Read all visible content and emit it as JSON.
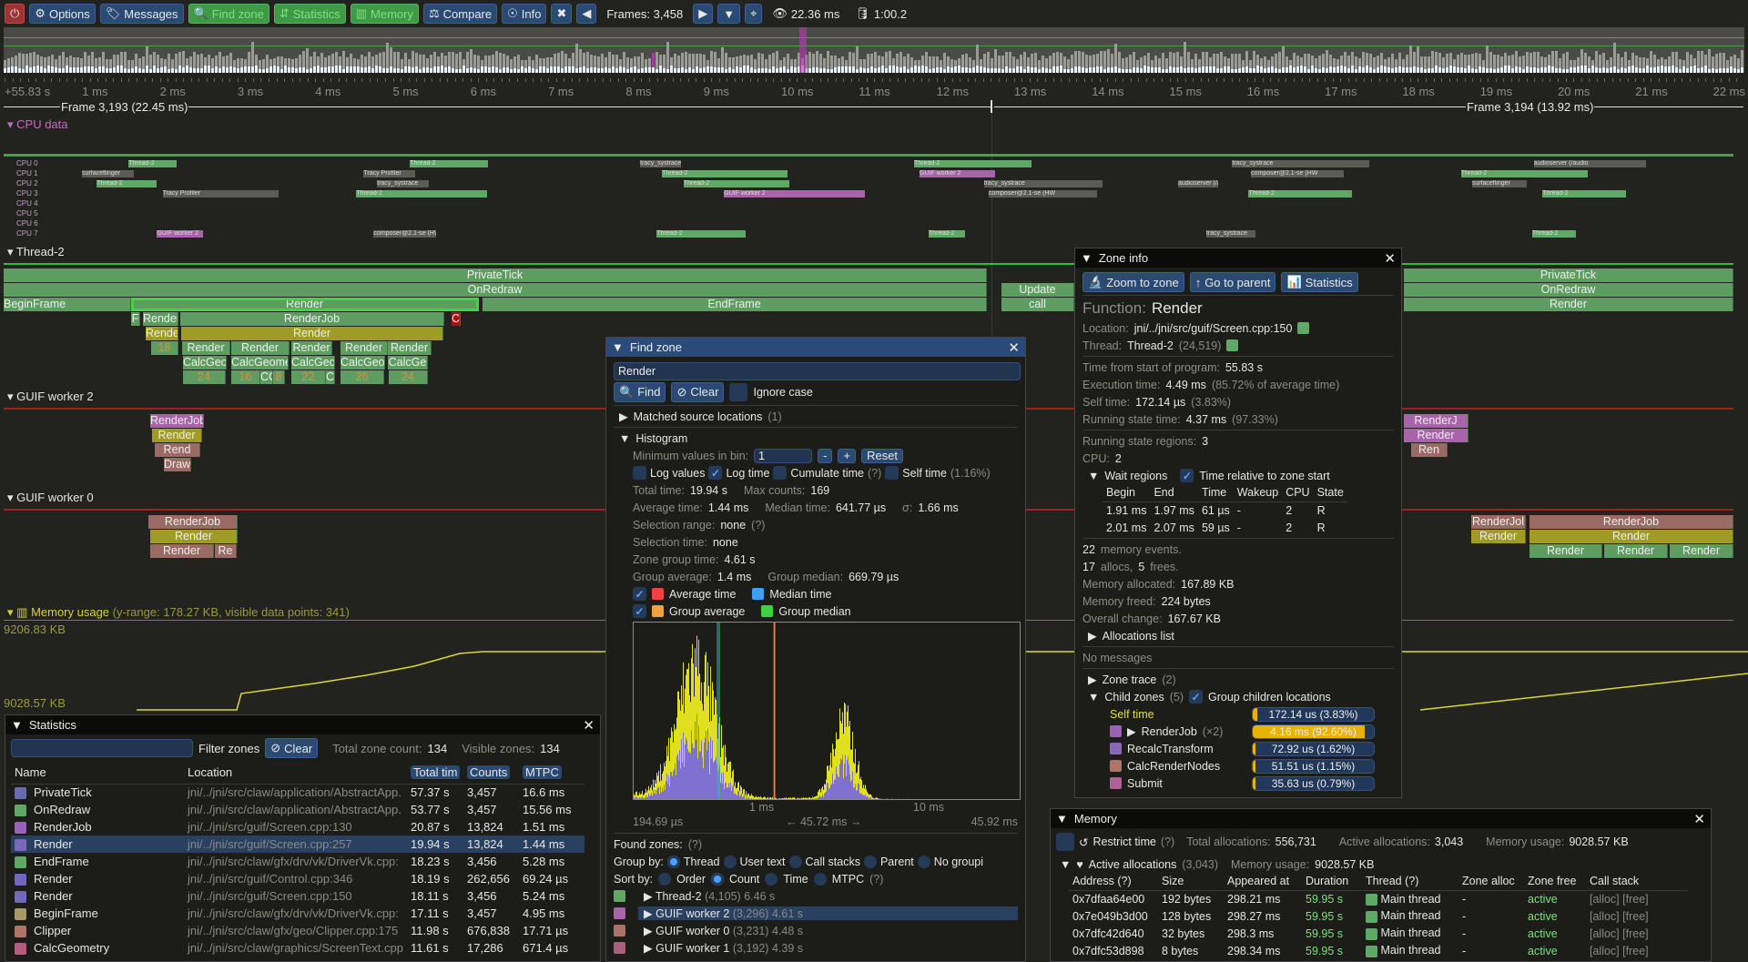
{
  "toolbar": {
    "buttons": [
      {
        "label": "",
        "icon": "power-icon"
      },
      {
        "label": "Options",
        "icon": "gear-icon"
      },
      {
        "label": "Messages",
        "icon": "tags-icon"
      },
      {
        "label": "Find zone",
        "icon": "search-icon"
      },
      {
        "label": "Statistics",
        "icon": "sort-amount-icon"
      },
      {
        "label": "Memory",
        "icon": "memory-icon"
      },
      {
        "label": "Compare",
        "icon": "scale-balanced-icon"
      },
      {
        "label": "Info",
        "icon": "fingerprint-icon"
      }
    ],
    "frames_label": "Frames: 3,458",
    "frame_time": "22.36 ms",
    "trace_length": "1:00.2"
  },
  "ruler": {
    "labels": [
      "+55.83 s",
      "1 ms",
      "2 ms",
      "3 ms",
      "4 ms",
      "5 ms",
      "6 ms",
      "7 ms",
      "8 ms",
      "9 ms",
      "10 ms",
      "11 ms",
      "12 ms",
      "13 ms",
      "14 ms",
      "15 ms",
      "16 ms",
      "17 ms",
      "18 ms",
      "19 ms",
      "20 ms",
      "21 ms",
      "22 ms"
    ]
  },
  "frames": [
    {
      "label": "Frame 3,193 (22.45 ms)"
    },
    {
      "label": "Frame 3,194 (13.92 ms)"
    }
  ],
  "timeline": {
    "cpu_header": "CPU data",
    "cpu_labels": [
      "CPU 0",
      "CPU 1",
      "CPU 2",
      "CPU 3",
      "CPU 4",
      "CPU 5",
      "CPU 6",
      "CPU 7"
    ],
    "cpu_threads": [
      "Thread-2",
      "Thread-2",
      "tracy_systrace",
      "Thread-2",
      "tracy_systrace",
      "audioserver (/audio",
      "surfaceflinger",
      "Tracy Profiler",
      "Thread-2",
      "GUIF worker 2",
      "composer@2.1-se (HW"
    ],
    "threads": [
      {
        "name": "Thread-2",
        "zones": [
          "PrivateTick",
          "OnRedraw",
          "BeginFrame",
          "Render",
          "EndFrame",
          "F",
          "Render",
          "RenderJob",
          "C",
          "Rende",
          "Render",
          "Render",
          "Render",
          "Render",
          "Render",
          "Render",
          "CalcGeo",
          "CalcGeome",
          "CalcGeor",
          "CalcGeo",
          "CalcGe",
          "24",
          "16",
          "CC",
          "8",
          "22",
          "C",
          "26",
          "24",
          "18",
          "Update",
          "call",
          "PrivateTick",
          "OnRedraw",
          "Render"
        ]
      },
      {
        "name": "GUIF worker 2",
        "zones": [
          "RenderJob",
          "Render",
          "Rend",
          "Draw",
          "RenderJ",
          "Render",
          "Ren"
        ]
      },
      {
        "name": "GUIF worker 0",
        "zones": [
          "RenderJob",
          "Render",
          "Render",
          "Re",
          "RenderJol",
          "Render",
          "RenderJob",
          "Render",
          "Render",
          "Render",
          "Render"
        ]
      }
    ],
    "memory": {
      "title": "Memory usage",
      "info": "(y-range: 178.27 KB, visible data points: 341)",
      "max_label": "9206.83 KB",
      "min_label": "9028.57 KB"
    }
  },
  "statistics": {
    "title": "Statistics",
    "filter_placeholder": "",
    "filter_label": "Filter zones",
    "clear": "Clear",
    "total_zone_count_label": "Total zone count:",
    "total_zone_count": "134",
    "visible_zones_label": "Visible zones:",
    "visible_zones": "134",
    "columns": [
      "Name",
      "Location",
      "Total tim",
      "Counts",
      "MTPC"
    ],
    "rows": [
      {
        "name": "PrivateTick",
        "location": "jni/../jni/src/claw/application/AbstractApp.",
        "total": "57.37 s",
        "counts": "3,457",
        "mtpc": "16.6 ms",
        "color": "#6b6bb0"
      },
      {
        "name": "OnRedraw",
        "location": "jni/../jni/src/claw/application/AbstractApp.",
        "total": "53.77 s",
        "counts": "3,457",
        "mtpc": "15.56 ms",
        "color": "#5fa866"
      },
      {
        "name": "RenderJob",
        "location": "jni/../jni/src/guif/Screen.cpp:130",
        "total": "20.87 s",
        "counts": "13,824",
        "mtpc": "1.51 ms",
        "color": "#9a62b4"
      },
      {
        "name": "Render",
        "location": "jni/../jni/src/guif/Screen.cpp:257",
        "total": "19.94 s",
        "counts": "13,824",
        "mtpc": "1.44 ms",
        "color": "#7a68b8",
        "selected": true
      },
      {
        "name": "EndFrame",
        "location": "jni/../jni/src/claw/gfx/drv/vk/DriverVk.cpp:",
        "total": "18.23 s",
        "counts": "3,456",
        "mtpc": "5.28 ms",
        "color": "#5fa866"
      },
      {
        "name": "Render",
        "location": "jni/../jni/src/guif/Control.cpp:346",
        "total": "18.19 s",
        "counts": "262,656",
        "mtpc": "69.24 µs",
        "color": "#7068b8"
      },
      {
        "name": "Render",
        "location": "jni/../jni/src/guif/Screen.cpp:150",
        "total": "18.11 s",
        "counts": "3,456",
        "mtpc": "5.24 ms",
        "color": "#7068b8"
      },
      {
        "name": "BeginFrame",
        "location": "jni/../jni/src/claw/gfx/drv/vk/DriverVk.cpp:",
        "total": "17.11 s",
        "counts": "3,457",
        "mtpc": "4.95 ms",
        "color": "#a89a68"
      },
      {
        "name": "Clipper",
        "location": "jni/../jni/src/claw/gfx/geo/Clipper.cpp:175",
        "total": "11.98 s",
        "counts": "676,838",
        "mtpc": "17.71 µs",
        "color": "#b07468"
      },
      {
        "name": "CalcGeometry",
        "location": "jni/../jni/src/claw/graphics/ScreenText.cpp",
        "total": "11.61 s",
        "counts": "17,286",
        "mtpc": "671.4 µs",
        "color": "#b0607e"
      }
    ]
  },
  "find_zone": {
    "title": "Find zone",
    "query": "Render",
    "find": "Find",
    "clear": "Clear",
    "ignore_case": "Ignore case",
    "matched": "Matched source locations",
    "matched_count": "(1)",
    "histogram": "Histogram",
    "min_values_label": "Minimum values in bin:",
    "min_values": "1",
    "minus": "-",
    "plus": "+",
    "reset": "Reset",
    "log_values": "Log values",
    "log_time": "Log time",
    "cumulate_time": "Cumulate time",
    "help": "(?)",
    "self_time": "Self time",
    "self_time_pct": "(1.16%)",
    "total_time_label": "Total time:",
    "total_time": "19.94 s",
    "max_counts_label": "Max counts:",
    "max_counts": "169",
    "avg_label": "Average time:",
    "avg": "1.44 ms",
    "median_label": "Median time:",
    "median": "641.77 µs",
    "sigma_label": "σ:",
    "sigma": "1.66 ms",
    "sel_range_label": "Selection range:",
    "sel_range": "none",
    "sel_time_label": "Selection time:",
    "sel_time": "none",
    "group_time_label": "Zone group time:",
    "group_time": "4.61 s",
    "group_avg_label": "Group average:",
    "group_avg": "1.4 ms",
    "group_median_label": "Group median:",
    "group_median": "669.79 µs",
    "legend": [
      {
        "label": "Average time",
        "color": "#f04040"
      },
      {
        "label": "Median time",
        "color": "#40a0f0"
      },
      {
        "label": "Group average",
        "color": "#f0a040"
      },
      {
        "label": "Group median",
        "color": "#40d040"
      }
    ],
    "axis_ticks": [
      "1 ms",
      "10 ms"
    ],
    "range_min": "194.69 µs",
    "range_span": "← 45.72 ms →",
    "range_max": "45.92 ms",
    "found_zones": "Found zones:",
    "group_by_label": "Group by:",
    "group_by": [
      "Thread",
      "User text",
      "Call stacks",
      "Parent",
      "No groupi"
    ],
    "sort_by_label": "Sort by:",
    "sort_by": [
      "Order",
      "Count",
      "Time",
      "MTPC"
    ],
    "groups": [
      {
        "name": "Thread-2",
        "count": "(4,105)",
        "time": "6.46 s",
        "color": "#5fa866"
      },
      {
        "name": "GUIF worker 2",
        "count": "(3,296)",
        "time": "4.61 s",
        "color": "#a864a8",
        "selected": true
      },
      {
        "name": "GUIF worker 0",
        "count": "(3,231)",
        "time": "4.48 s",
        "color": "#a87468"
      },
      {
        "name": "GUIF worker 1",
        "count": "(3,192)",
        "time": "4.39 s",
        "color": "#a8607e"
      }
    ]
  },
  "zone_info": {
    "title": "Zone info",
    "zoom": "Zoom to zone",
    "parent": "Go to parent",
    "stats": "Statistics",
    "function_label": "Function:",
    "function": "Render",
    "location_label": "Location:",
    "location": "jni/../jni/src/guif/Screen.cpp:150",
    "thread_label": "Thread:",
    "thread": "Thread-2",
    "thread_id": "(24,519)",
    "start_label": "Time from start of program:",
    "start": "55.83 s",
    "exec_label": "Execution time:",
    "exec": "4.49 ms",
    "exec_pct": "(85.72% of average time)",
    "self_label": "Self time:",
    "self": "172.14 µs",
    "self_pct": "(3.83%)",
    "running_label": "Running state time:",
    "running": "4.37 ms",
    "running_pct": "(97.33%)",
    "regions_label": "Running state regions:",
    "regions": "3",
    "cpu_label": "CPU:",
    "cpu": "2",
    "wait_regions": "Wait regions",
    "relative": "Time relative to zone start",
    "wait_columns": [
      "Begin",
      "End",
      "Time",
      "Wakeup",
      "CPU",
      "State"
    ],
    "wait_rows": [
      [
        "1.91 ms",
        "1.97 ms",
        "61 µs",
        "-",
        "2",
        "R"
      ],
      [
        "2.01 ms",
        "2.07 ms",
        "59 µs",
        "-",
        "2",
        "R"
      ]
    ],
    "mem_events": "22",
    "mem_events_label": "memory events.",
    "allocs": "17",
    "allocs_label": "allocs,",
    "frees": "5",
    "frees_label": "frees.",
    "mem_alloc_label": "Memory allocated:",
    "mem_alloc": "167.89 KB",
    "mem_freed_label": "Memory freed:",
    "mem_freed": "224 bytes",
    "overall_label": "Overall change:",
    "overall": "167.67 KB",
    "alloc_list": "Allocations list",
    "no_messages": "No messages",
    "zone_trace": "Zone trace",
    "zone_trace_count": "(2)",
    "child_zones": "Child zones",
    "child_count": "(5)",
    "group_children": "Group children locations",
    "children": [
      {
        "name": "Self time",
        "value": "172.14 us (3.83%)",
        "pct": 3.83,
        "color": ""
      },
      {
        "name": "RenderJob",
        "extra": "(×2)",
        "value": "4.16 ms (92.60%)",
        "pct": 92.6,
        "color": "#9a62b4"
      },
      {
        "name": "RecalcTransform",
        "value": "72.92 us (1.62%)",
        "pct": 1.62,
        "color": "#8a68b8"
      },
      {
        "name": "CalcRenderNodes",
        "value": "51.51 us (1.15%)",
        "pct": 1.15,
        "color": "#b07468"
      },
      {
        "name": "Submit",
        "value": "35.63 us (0.79%)",
        "pct": 0.79,
        "color": "#b0609a"
      }
    ]
  },
  "memory": {
    "title": "Memory",
    "restrict": "Restrict time",
    "help": "(?)",
    "total_label": "Total allocations:",
    "total": "556,731",
    "active_label": "Active allocations:",
    "active": "3,043",
    "usage_label": "Memory usage:",
    "usage": "9028.57 KB",
    "active_allocs": "Active allocations",
    "active_count": "(3,043)",
    "columns": [
      "Address (?)",
      "Size",
      "Appeared at",
      "Duration",
      "Thread (?)",
      "Zone alloc",
      "Zone free",
      "Call stack"
    ],
    "rows": [
      [
        "0x7dfaa64e00",
        "192 bytes",
        "298.21 ms",
        "59.95 s",
        "Main thread",
        "-",
        "active",
        "[alloc]",
        "[free]"
      ],
      [
        "0x7e049b3d00",
        "128 bytes",
        "298.27 ms",
        "59.95 s",
        "Main thread",
        "-",
        "active",
        "[alloc]",
        "[free]"
      ],
      [
        "0x7dfc42d640",
        "32 bytes",
        "298.3 ms",
        "59.95 s",
        "Main thread",
        "-",
        "active",
        "[alloc]",
        "[free]"
      ],
      [
        "0x7dfc53d898",
        "8 bytes",
        "298.34 ms",
        "59.95 s",
        "Main thread",
        "-",
        "active",
        "[alloc]",
        "[free]"
      ]
    ]
  }
}
